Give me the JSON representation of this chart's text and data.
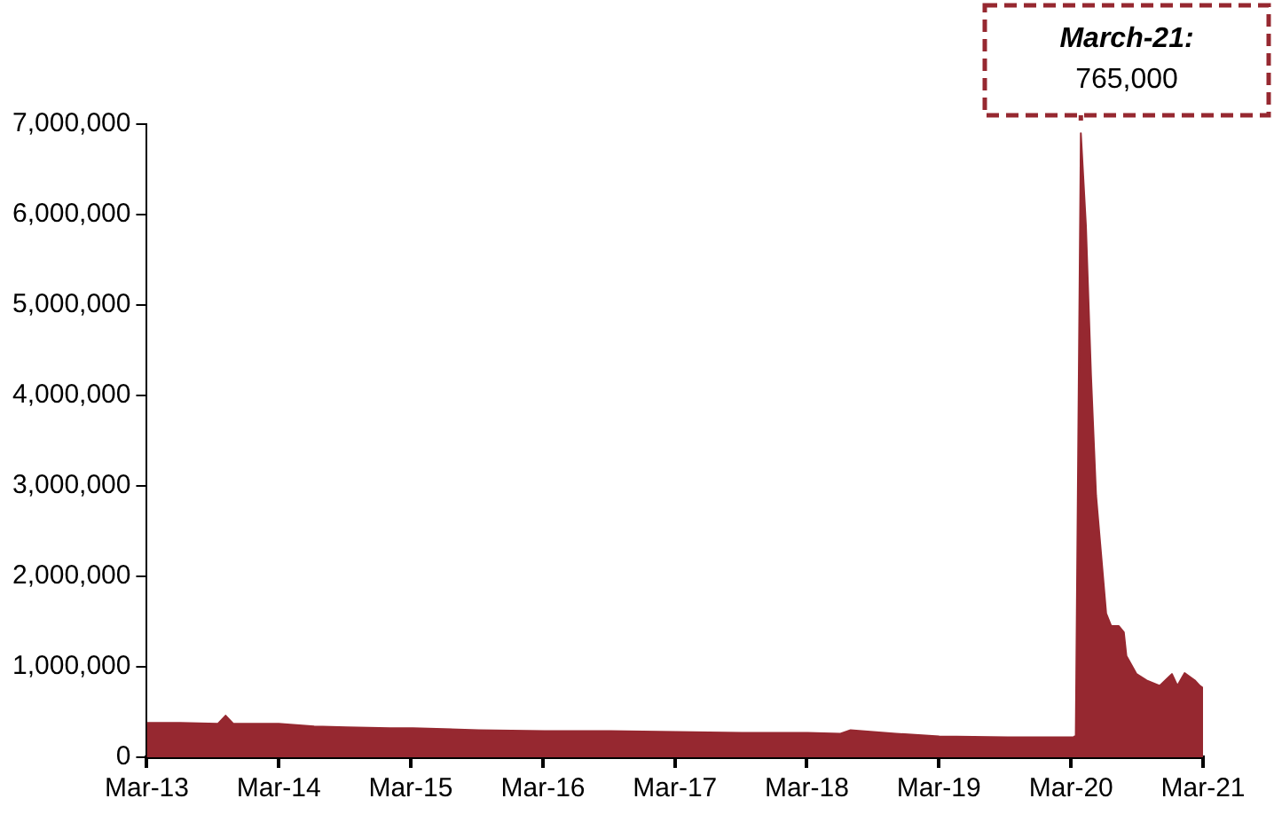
{
  "chart_data": {
    "type": "area",
    "x": [
      "2013-03-01",
      "2013-06-01",
      "2013-09-14",
      "2013-10-05",
      "2013-10-26",
      "2014-01-04",
      "2014-03-01",
      "2014-06-07",
      "2014-09-06",
      "2015-01-03",
      "2015-03-07",
      "2015-09-05",
      "2016-03-05",
      "2016-09-03",
      "2017-03-04",
      "2017-09-02",
      "2018-03-03",
      "2018-06-02",
      "2018-06-30",
      "2018-11-03",
      "2019-03-02",
      "2019-09-07",
      "2020-03-07",
      "2020-03-14",
      "2020-03-28",
      "2020-04-11",
      "2020-04-25",
      "2020-05-09",
      "2020-06-06",
      "2020-06-20",
      "2020-07-11",
      "2020-07-25",
      "2020-08-01",
      "2020-08-29",
      "2020-09-26",
      "2020-11-01",
      "2020-12-05",
      "2020-12-20",
      "2021-01-09",
      "2021-02-06",
      "2021-02-20",
      "2021-03-01"
    ],
    "series": [
      {
        "color": "#962830",
        "values": [
          380000,
          380000,
          370000,
          460000,
          370000,
          370000,
          370000,
          340000,
          330000,
          320000,
          320000,
          300000,
          290000,
          290000,
          280000,
          270000,
          270000,
          260000,
          300000,
          260000,
          230000,
          220000,
          220000,
          240000,
          6900000,
          5880000,
          4230000,
          2900000,
          1590000,
          1450000,
          1450000,
          1380000,
          1120000,
          920000,
          850000,
          790000,
          920000,
          790000,
          930000,
          850000,
          790000,
          765000
        ]
      }
    ],
    "xlim": [
      "2013-03-01",
      "2021-03-01"
    ],
    "xticks": [
      {
        "value": "2013-03-01",
        "label": "Mar-13"
      },
      {
        "value": "2014-03-01",
        "label": "Mar-14"
      },
      {
        "value": "2015-03-01",
        "label": "Mar-15"
      },
      {
        "value": "2016-03-01",
        "label": "Mar-16"
      },
      {
        "value": "2017-03-01",
        "label": "Mar-17"
      },
      {
        "value": "2018-03-01",
        "label": "Mar-18"
      },
      {
        "value": "2019-03-01",
        "label": "Mar-19"
      },
      {
        "value": "2020-03-01",
        "label": "Mar-20"
      },
      {
        "value": "2021-03-01",
        "label": "Mar-21"
      }
    ],
    "ylim": [
      0,
      7000000
    ],
    "yticks": [
      0,
      {
        "value": 1000000,
        "label": "1,000,000"
      },
      {
        "value": 2000000,
        "label": "2,000,000"
      },
      {
        "value": 3000000,
        "label": "3,000,000"
      },
      {
        "value": 4000000,
        "label": "4,000,000"
      },
      {
        "value": 5000000,
        "label": "5,000,000"
      },
      {
        "value": 6000000,
        "label": "6,000,000"
      },
      {
        "value": 7000000,
        "label": "7,000,000"
      }
    ],
    "grid": false,
    "legend": false,
    "annotations": [
      "March-21:\n765,000"
    ]
  }
}
